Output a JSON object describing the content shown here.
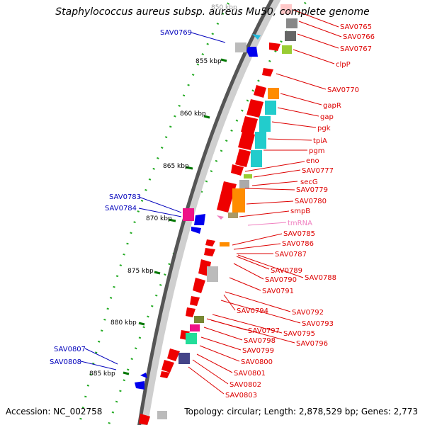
{
  "title": "Staphylococcus aureus subsp. aureus Mu50, complete genome",
  "footer": {
    "accession": "Accession: NC_002758",
    "topology": "Topology: circular; Length: 2,878,529 bp; Genes: 2,773"
  },
  "colors": {
    "right_label": "#dd0000",
    "left_label": "#0000bb",
    "rna_label": "#f080c0",
    "tick": "#007700",
    "backbone": "#555555"
  },
  "kbp_ticks": [
    "850 kbp",
    "855 kbp",
    "860 kbp",
    "865 kbp",
    "870 kbp",
    "875 kbp",
    "880 kbp",
    "885 kbp"
  ],
  "right_labels": [
    "SAV0765",
    "SAV0766",
    "SAV0767",
    "clpP",
    "SAV0770",
    "gapR",
    "gap",
    "pgk",
    "tpiA",
    "pgm",
    "eno",
    "SAV0777",
    "secG",
    "SAV0779",
    "SAV0780",
    "smpB",
    "tmRNA",
    "SAV0785",
    "SAV0786",
    "SAV0787",
    "SAV0789",
    "SAV0788",
    "SAV0790",
    "SAV0791",
    "SAV0794",
    "SAV0792",
    "SAV0793",
    "SAV0797",
    "SAV0795",
    "SAV0798",
    "SAV0796",
    "SAV0799",
    "SAV0800",
    "SAV0801",
    "SAV0802",
    "SAV0803"
  ],
  "left_labels": [
    "SAV0769",
    "SAV0783",
    "SAV0784",
    "SAV0807",
    "SAV0808"
  ]
}
